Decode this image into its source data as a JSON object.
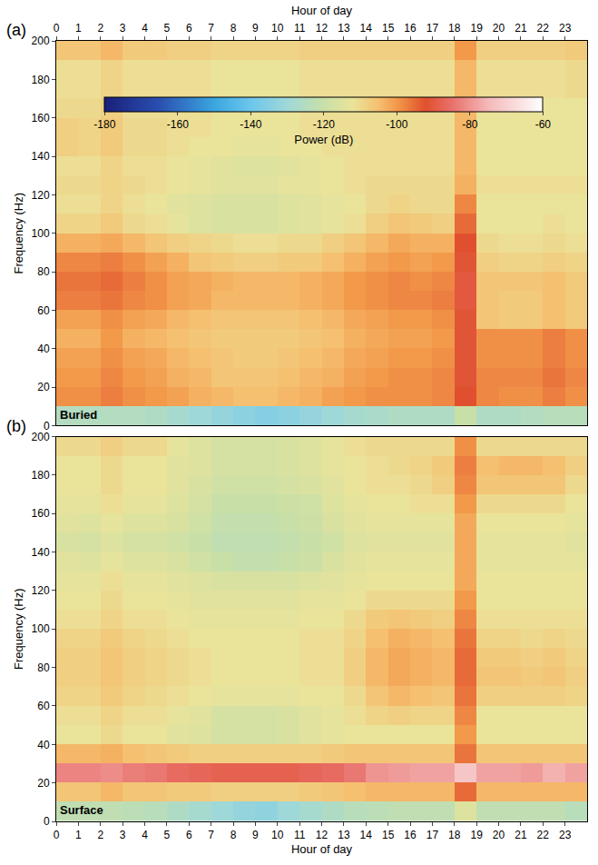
{
  "chart_data": {
    "type": "heatmap",
    "xlabel": "Hour of day",
    "ylabel": "Frequency (Hz)",
    "xlim": [
      0,
      24
    ],
    "xticks": [
      0,
      1,
      2,
      3,
      4,
      5,
      6,
      7,
      8,
      9,
      10,
      11,
      12,
      13,
      14,
      15,
      16,
      17,
      18,
      19,
      20,
      21,
      22,
      23
    ],
    "ylim": [
      0,
      200
    ],
    "yticks": [
      0,
      20,
      40,
      60,
      80,
      100,
      120,
      140,
      160,
      180,
      200
    ],
    "x": [
      0,
      1,
      2,
      3,
      4,
      5,
      6,
      7,
      8,
      9,
      10,
      11,
      12,
      13,
      14,
      15,
      16,
      17,
      18,
      19,
      20,
      21,
      22,
      23,
      24
    ],
    "y": [
      0,
      10,
      20,
      30,
      40,
      50,
      60,
      70,
      80,
      90,
      100,
      110,
      120,
      130,
      140,
      150,
      160,
      170,
      180,
      190,
      200
    ],
    "colorbar": {
      "label": "Power (dB)",
      "range": [
        -180,
        -60
      ],
      "ticks": [
        -180,
        -160,
        -140,
        -120,
        -100,
        -80,
        -60
      ]
    },
    "panels": [
      {
        "letter": "(a)",
        "name": "Buried",
        "cells": [
          [
            -125,
            -125,
            -125,
            -125,
            -126,
            -128,
            -130,
            -132,
            -134,
            -135,
            -134,
            -132,
            -130,
            -128,
            -127,
            -126,
            -126,
            -126,
            -120,
            -126,
            -126,
            -125,
            -124,
            -124
          ],
          [
            -99,
            -99,
            -97,
            -99,
            -100,
            -101,
            -103,
            -104,
            -105,
            -105,
            -104,
            -103,
            -101,
            -100,
            -99,
            -99,
            -99,
            -98,
            -92,
            -98,
            -99,
            -99,
            -97,
            -99
          ],
          [
            -100,
            -100,
            -98,
            -100,
            -101,
            -103,
            -104,
            -106,
            -106,
            -106,
            -105,
            -104,
            -103,
            -101,
            -100,
            -99,
            -99,
            -98,
            -91,
            -98,
            -98,
            -98,
            -96,
            -98
          ],
          [
            -101,
            -101,
            -99,
            -101,
            -102,
            -104,
            -105,
            -106,
            -107,
            -107,
            -106,
            -105,
            -104,
            -102,
            -101,
            -100,
            -100,
            -99,
            -91,
            -99,
            -99,
            -99,
            -97,
            -99
          ],
          [
            -103,
            -103,
            -100,
            -103,
            -104,
            -105,
            -106,
            -107,
            -107,
            -107,
            -107,
            -106,
            -105,
            -103,
            -102,
            -101,
            -101,
            -100,
            -91,
            -99,
            -99,
            -99,
            -97,
            -99
          ],
          [
            -101,
            -101,
            -99,
            -101,
            -102,
            -104,
            -105,
            -106,
            -106,
            -106,
            -106,
            -105,
            -104,
            -102,
            -101,
            -100,
            -100,
            -99,
            -91,
            -106,
            -107,
            -107,
            -105,
            -107
          ],
          [
            -97,
            -97,
            -96,
            -98,
            -99,
            -101,
            -102,
            -104,
            -104,
            -104,
            -104,
            -103,
            -102,
            -100,
            -99,
            -98,
            -98,
            -97,
            -90,
            -106,
            -107,
            -107,
            -105,
            -107
          ],
          [
            -96,
            -96,
            -95,
            -97,
            -99,
            -101,
            -102,
            -103,
            -104,
            -104,
            -104,
            -103,
            -102,
            -100,
            -99,
            -98,
            -99,
            -98,
            -90,
            -106,
            -106,
            -106,
            -105,
            -107
          ],
          [
            -98,
            -98,
            -97,
            -99,
            -101,
            -103,
            -106,
            -107,
            -108,
            -108,
            -107,
            -107,
            -105,
            -103,
            -101,
            -100,
            -101,
            -100,
            -91,
            -108,
            -109,
            -109,
            -108,
            -109
          ],
          [
            -103,
            -103,
            -102,
            -104,
            -106,
            -108,
            -109,
            -110,
            -111,
            -111,
            -110,
            -110,
            -108,
            -106,
            -104,
            -102,
            -103,
            -103,
            -92,
            -110,
            -111,
            -111,
            -110,
            -111
          ],
          [
            -109,
            -109,
            -107,
            -110,
            -111,
            -113,
            -115,
            -116,
            -116,
            -116,
            -115,
            -114,
            -113,
            -111,
            -108,
            -106,
            -107,
            -108,
            -95,
            -112,
            -112,
            -112,
            -111,
            -112
          ],
          [
            -111,
            -111,
            -109,
            -111,
            -112,
            -114,
            -115,
            -116,
            -116,
            -116,
            -115,
            -114,
            -113,
            -112,
            -110,
            -109,
            -110,
            -110,
            -98,
            -112,
            -112,
            -112,
            -112,
            -112
          ],
          [
            -110,
            -110,
            -109,
            -110,
            -111,
            -112,
            -113,
            -114,
            -114,
            -114,
            -113,
            -113,
            -112,
            -111,
            -110,
            -110,
            -110,
            -110,
            -103,
            -111,
            -111,
            -111,
            -111,
            -111
          ],
          [
            -111,
            -111,
            -109,
            -111,
            -111,
            -112,
            -113,
            -114,
            -115,
            -115,
            -114,
            -113,
            -112,
            -111,
            -111,
            -111,
            -111,
            -111,
            -104,
            -112,
            -112,
            -112,
            -112,
            -112
          ],
          [
            -108,
            -109,
            -107,
            -110,
            -110,
            -111,
            -112,
            -112,
            -113,
            -113,
            -112,
            -112,
            -111,
            -111,
            -111,
            -111,
            -111,
            -111,
            -104,
            -112,
            -112,
            -112,
            -112,
            -112
          ],
          [
            -108,
            -109,
            -107,
            -110,
            -110,
            -111,
            -111,
            -112,
            -112,
            -112,
            -112,
            -111,
            -111,
            -111,
            -111,
            -111,
            -111,
            -111,
            -104,
            -112,
            -112,
            -112,
            -112,
            -112
          ],
          [
            -110,
            -110,
            -108,
            -111,
            -111,
            -111,
            -111,
            -112,
            -112,
            -112,
            -112,
            -111,
            -111,
            -111,
            -111,
            -111,
            -111,
            -111,
            -104,
            -112,
            -112,
            -112,
            -112,
            -112
          ],
          [
            -111,
            -111,
            -109,
            -111,
            -111,
            -111,
            -111,
            -112,
            -112,
            -112,
            -112,
            -111,
            -111,
            -111,
            -111,
            -111,
            -111,
            -111,
            -104,
            -111,
            -111,
            -111,
            -111,
            -110
          ],
          [
            -111,
            -111,
            -109,
            -111,
            -111,
            -111,
            -111,
            -112,
            -112,
            -112,
            -112,
            -111,
            -111,
            -111,
            -111,
            -111,
            -111,
            -111,
            -104,
            -111,
            -111,
            -111,
            -111,
            -110
          ],
          [
            -106,
            -106,
            -104,
            -107,
            -107,
            -108,
            -108,
            -109,
            -109,
            -109,
            -109,
            -108,
            -108,
            -108,
            -108,
            -108,
            -108,
            -108,
            -100,
            -108,
            -108,
            -108,
            -108,
            -107
          ]
        ]
      },
      {
        "letter": "(b)",
        "name": "Surface",
        "cells": [
          [
            -122,
            -122,
            -122,
            -123,
            -124,
            -126,
            -128,
            -130,
            -132,
            -133,
            -130,
            -128,
            -126,
            -124,
            -123,
            -122,
            -122,
            -122,
            -115,
            -122,
            -122,
            -122,
            -122,
            -124
          ],
          [
            -106,
            -106,
            -104,
            -106,
            -106,
            -107,
            -107,
            -108,
            -108,
            -108,
            -108,
            -107,
            -106,
            -105,
            -104,
            -104,
            -104,
            -104,
            -95,
            -104,
            -104,
            -104,
            -104,
            -104
          ],
          [
            -82,
            -82,
            -81,
            -83,
            -84,
            -86,
            -87,
            -88,
            -88,
            -88,
            -88,
            -87,
            -86,
            -84,
            -80,
            -79,
            -78,
            -78,
            -72,
            -78,
            -78,
            -79,
            -76,
            -78
          ],
          [
            -104,
            -104,
            -103,
            -105,
            -106,
            -107,
            -108,
            -108,
            -108,
            -108,
            -108,
            -108,
            -107,
            -106,
            -106,
            -106,
            -106,
            -106,
            -96,
            -106,
            -106,
            -106,
            -106,
            -106
          ],
          [
            -112,
            -112,
            -110,
            -112,
            -112,
            -114,
            -115,
            -117,
            -117,
            -117,
            -116,
            -114,
            -113,
            -112,
            -112,
            -112,
            -112,
            -112,
            -100,
            -112,
            -112,
            -112,
            -112,
            -112
          ],
          [
            -111,
            -111,
            -109,
            -111,
            -111,
            -113,
            -114,
            -117,
            -117,
            -117,
            -116,
            -114,
            -113,
            -111,
            -109,
            -108,
            -109,
            -109,
            -98,
            -112,
            -112,
            -112,
            -112,
            -112
          ],
          [
            -109,
            -109,
            -107,
            -109,
            -110,
            -111,
            -112,
            -113,
            -113,
            -113,
            -113,
            -112,
            -112,
            -110,
            -106,
            -104,
            -105,
            -106,
            -96,
            -108,
            -108,
            -108,
            -108,
            -109
          ],
          [
            -108,
            -108,
            -106,
            -108,
            -109,
            -110,
            -111,
            -112,
            -112,
            -112,
            -112,
            -111,
            -111,
            -108,
            -104,
            -102,
            -103,
            -104,
            -95,
            -106,
            -106,
            -107,
            -106,
            -108
          ],
          [
            -108,
            -108,
            -106,
            -108,
            -109,
            -110,
            -111,
            -112,
            -112,
            -112,
            -112,
            -111,
            -111,
            -108,
            -104,
            -102,
            -103,
            -104,
            -95,
            -107,
            -107,
            -108,
            -107,
            -109
          ],
          [
            -109,
            -109,
            -107,
            -109,
            -110,
            -111,
            -112,
            -112,
            -112,
            -112,
            -112,
            -111,
            -111,
            -109,
            -105,
            -103,
            -104,
            -105,
            -96,
            -109,
            -109,
            -110,
            -109,
            -110
          ],
          [
            -111,
            -111,
            -109,
            -111,
            -111,
            -112,
            -113,
            -113,
            -113,
            -113,
            -113,
            -112,
            -112,
            -110,
            -107,
            -106,
            -107,
            -108,
            -98,
            -111,
            -111,
            -111,
            -111,
            -111
          ],
          [
            -112,
            -112,
            -110,
            -112,
            -112,
            -113,
            -114,
            -114,
            -114,
            -114,
            -114,
            -113,
            -113,
            -112,
            -110,
            -110,
            -110,
            -110,
            -100,
            -112,
            -112,
            -112,
            -112,
            -112
          ],
          [
            -113,
            -113,
            -111,
            -113,
            -113,
            -114,
            -115,
            -116,
            -116,
            -116,
            -116,
            -115,
            -114,
            -113,
            -112,
            -112,
            -112,
            -112,
            -102,
            -112,
            -112,
            -112,
            -112,
            -112
          ],
          [
            -114,
            -115,
            -113,
            -115,
            -115,
            -116,
            -118,
            -120,
            -121,
            -121,
            -120,
            -119,
            -116,
            -114,
            -113,
            -113,
            -113,
            -113,
            -102,
            -113,
            -113,
            -113,
            -113,
            -113
          ],
          [
            -116,
            -117,
            -115,
            -117,
            -117,
            -118,
            -120,
            -122,
            -122,
            -122,
            -121,
            -120,
            -118,
            -115,
            -114,
            -114,
            -114,
            -114,
            -102,
            -113,
            -113,
            -113,
            -113,
            -114
          ],
          [
            -114,
            -115,
            -113,
            -115,
            -115,
            -116,
            -118,
            -121,
            -121,
            -121,
            -120,
            -119,
            -116,
            -114,
            -113,
            -113,
            -113,
            -113,
            -102,
            -112,
            -112,
            -112,
            -112,
            -113
          ],
          [
            -113,
            -113,
            -111,
            -113,
            -113,
            -115,
            -117,
            -120,
            -120,
            -120,
            -119,
            -118,
            -115,
            -113,
            -112,
            -112,
            -111,
            -111,
            -100,
            -110,
            -110,
            -110,
            -110,
            -112
          ],
          [
            -112,
            -112,
            -110,
            -112,
            -112,
            -114,
            -116,
            -118,
            -118,
            -118,
            -117,
            -116,
            -114,
            -112,
            -111,
            -111,
            -110,
            -108,
            -98,
            -106,
            -106,
            -106,
            -106,
            -110
          ],
          [
            -112,
            -112,
            -110,
            -112,
            -112,
            -114,
            -115,
            -117,
            -117,
            -117,
            -116,
            -115,
            -113,
            -112,
            -111,
            -110,
            -109,
            -107,
            -97,
            -105,
            -104,
            -104,
            -105,
            -108
          ],
          [
            -110,
            -110,
            -108,
            -110,
            -110,
            -113,
            -115,
            -117,
            -117,
            -117,
            -116,
            -115,
            -113,
            -111,
            -110,
            -110,
            -110,
            -110,
            -99,
            -110,
            -110,
            -110,
            -110,
            -110
          ]
        ]
      }
    ]
  }
}
